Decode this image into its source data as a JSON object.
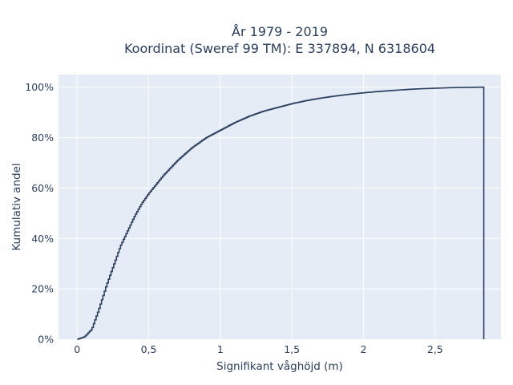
{
  "chart_data": {
    "type": "line",
    "step": true,
    "title_lines": [
      "År 1979 - 2019",
      "Koordinat (Sweref 99 TM): E 337894, N 6318604"
    ],
    "xlabel": "Signifikant våghöjd (m)",
    "ylabel": "Kumulativ andel",
    "xlim": [
      -0.13,
      2.96
    ],
    "ylim": [
      0,
      1.05
    ],
    "x_ticks": [
      0,
      0.5,
      1,
      1.5,
      2,
      2.5
    ],
    "x_tick_labels": [
      "0",
      "0,5",
      "1",
      "1,5",
      "2",
      "2,5"
    ],
    "y_ticks": [
      0,
      0.2,
      0.4,
      0.6,
      0.8,
      1.0
    ],
    "y_tick_labels": [
      "0%",
      "20%",
      "40%",
      "60%",
      "80%",
      "100%"
    ],
    "grid": true,
    "series": [
      {
        "color": "#2a3f5f",
        "x": [
          0,
          0.05,
          0.1,
          0.15,
          0.2,
          0.25,
          0.3,
          0.35,
          0.4,
          0.45,
          0.5,
          0.6,
          0.7,
          0.8,
          0.9,
          1.0,
          1.1,
          1.2,
          1.3,
          1.4,
          1.5,
          1.6,
          1.7,
          1.8,
          1.9,
          2.0,
          2.1,
          2.2,
          2.3,
          2.4,
          2.5,
          2.6,
          2.7,
          2.8,
          2.84
        ],
        "y": [
          0,
          0.01,
          0.04,
          0.12,
          0.21,
          0.29,
          0.37,
          0.43,
          0.49,
          0.54,
          0.58,
          0.65,
          0.71,
          0.76,
          0.8,
          0.83,
          0.86,
          0.885,
          0.905,
          0.92,
          0.935,
          0.947,
          0.957,
          0.965,
          0.972,
          0.978,
          0.983,
          0.987,
          0.991,
          0.994,
          0.996,
          0.998,
          0.999,
          1.0,
          1.0
        ]
      }
    ]
  },
  "colors": {
    "plot_bg": "#e5ecf6",
    "grid": "#ffffff",
    "line": "#2a3f5f"
  }
}
